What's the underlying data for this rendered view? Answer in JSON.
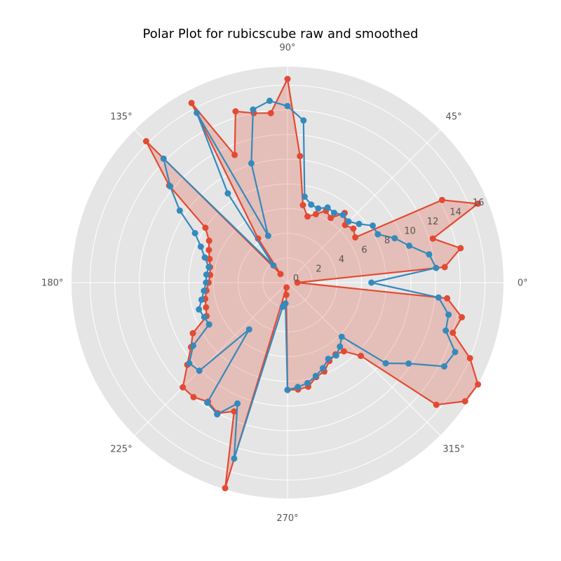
{
  "chart_data": {
    "type": "polar-line",
    "title": "Polar Plot for rubicscube raw and smoothed",
    "angle_tick_labels": [
      "0°",
      "45°",
      "90°",
      "135°",
      "180°",
      "225°",
      "270°",
      "315°"
    ],
    "angle_ticks_deg": [
      0,
      45,
      90,
      135,
      180,
      225,
      270,
      315
    ],
    "radial_tick_labels": [
      "0",
      "2",
      "4",
      "6",
      "8",
      "10",
      "12",
      "14",
      "16"
    ],
    "radial_ticks": [
      0,
      2,
      4,
      6,
      8,
      10,
      12,
      14,
      16
    ],
    "rlim": [
      0,
      17.5
    ],
    "grid": true,
    "theta_deg": [
      0,
      5.625,
      11.25,
      16.875,
      22.5,
      28.125,
      33.75,
      39.375,
      45,
      50.625,
      56.25,
      61.875,
      67.5,
      73.125,
      78.75,
      84.375,
      90,
      95.625,
      101.25,
      106.875,
      112.5,
      118.125,
      123.75,
      129.375,
      135,
      140.625,
      146.25,
      151.875,
      157.5,
      163.125,
      168.75,
      174.375,
      180,
      185.625,
      191.25,
      196.875,
      202.5,
      208.125,
      213.75,
      219.375,
      225,
      230.625,
      236.25,
      241.875,
      247.5,
      253.125,
      258.75,
      264.375,
      270,
      275.625,
      281.25,
      286.875,
      292.5,
      298.125,
      303.75,
      309.375,
      315,
      320.625,
      326.25,
      331.875,
      337.5,
      343.125,
      348.75,
      354.375
    ],
    "series": [
      {
        "color": "#e24a33",
        "filled": true,
        "values": [
          0.8,
          12.8,
          14.3,
          12.3,
          16.7,
          14.2,
          6.6,
          6.9,
          6.6,
          7.3,
          6.3,
          6.6,
          6.0,
          5.6,
          6.4,
          10.3,
          16.5,
          13.8,
          14.0,
          14.5,
          11.2,
          16.5,
          4.3,
          0.9,
          16.2,
          12.4,
          8.0,
          7.2,
          6.9,
          6.6,
          6.4,
          6.3,
          6.4,
          6.6,
          6.8,
          6.9,
          7.1,
          8.7,
          9.4,
          10.5,
          12.0,
          12.0,
          11.6,
          12.0,
          11.3,
          17.4,
          0.4,
          1.0,
          8.7,
          8.7,
          8.6,
          8.0,
          7.8,
          7.2,
          7.0,
          7.2,
          8.4,
          15.6,
          17.3,
          17.5,
          16.0,
          14.0,
          14.4,
          13.0
        ]
      },
      {
        "color": "#348abd",
        "filled": false,
        "values": [
          6.8,
          12.1,
          11.7,
          10.3,
          9.4,
          8.3,
          8.3,
          7.5,
          7.0,
          7.1,
          6.8,
          6.9,
          6.5,
          6.6,
          7.1,
          13.2,
          14.3,
          14.8,
          14.3,
          10.1,
          4.1,
          15.6,
          8.7,
          1.8,
          14.2,
          12.3,
          10.5,
          8.5,
          7.6,
          7.0,
          6.5,
          6.6,
          6.6,
          6.8,
          7.1,
          7.5,
          7.3,
          7.2,
          9.2,
          10.3,
          10.1,
          4.9,
          11.7,
          12.1,
          10.6,
          14.9,
          2.0,
          1.7,
          8.7,
          8.5,
          8.3,
          7.9,
          7.5,
          7.0,
          7.1,
          6.7,
          6.2,
          10.3,
          11.8,
          14.4,
          14.7,
          13.4,
          13.3,
          12.3
        ]
      }
    ]
  }
}
